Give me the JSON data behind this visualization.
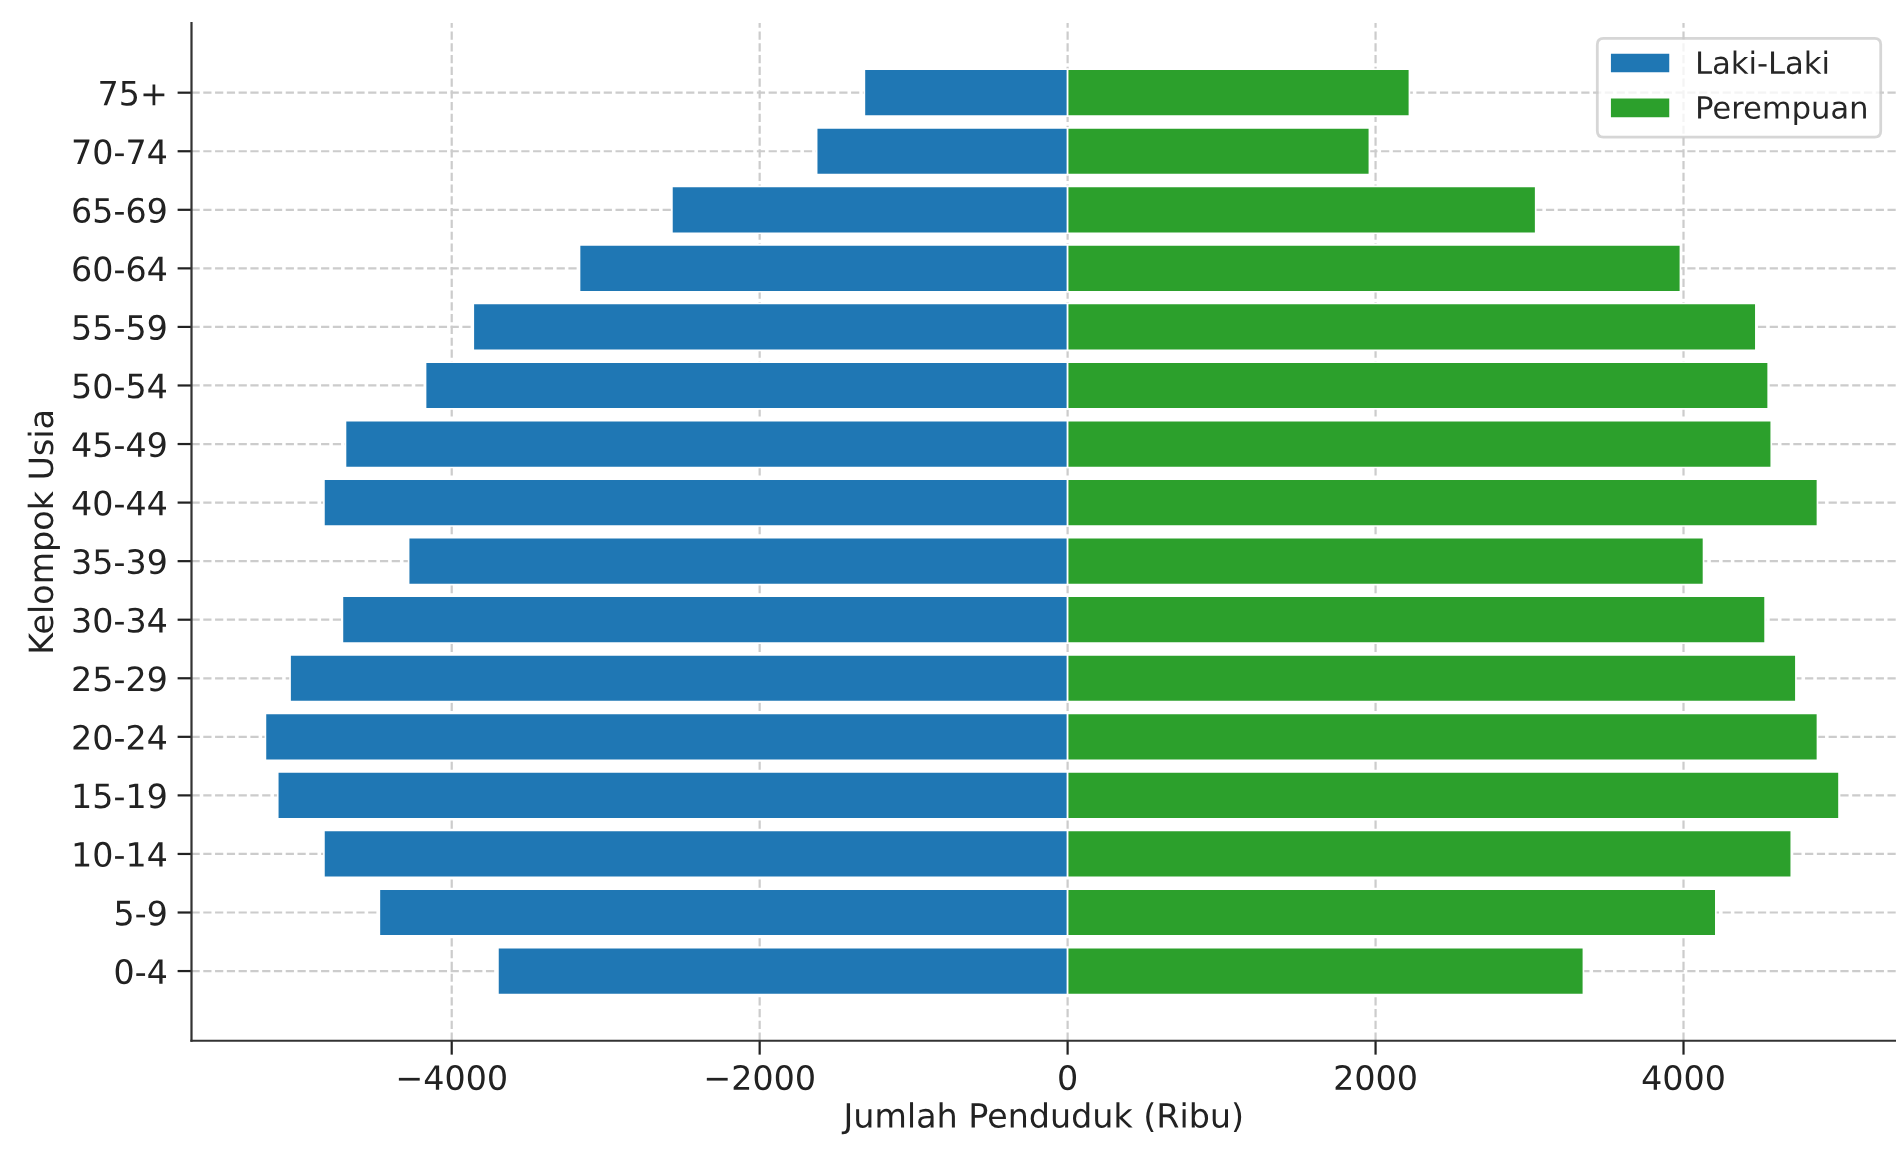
{
  "chart_data": {
    "type": "bar",
    "orientation": "horizontal",
    "xlabel": "Jumlah Penduduk (Ribu)",
    "ylabel": "Kelompok Usia",
    "categories": [
      "75+",
      "70-74",
      "65-69",
      "60-64",
      "55-59",
      "50-54",
      "45-49",
      "40-44",
      "35-39",
      "30-34",
      "25-29",
      "20-24",
      "15-19",
      "10-14",
      "5-9",
      "0-4"
    ],
    "series": [
      {
        "name": "Laki-Laki",
        "color": "#1f77b4",
        "values": [
          -1320,
          -1630,
          -2570,
          -3170,
          -3860,
          -4170,
          -4690,
          -4830,
          -4280,
          -4710,
          -5050,
          -5210,
          -5130,
          -4830,
          -4470,
          -3700
        ]
      },
      {
        "name": "Perempuan",
        "color": "#2ca02c",
        "values": [
          2220,
          1960,
          3040,
          3980,
          4470,
          4550,
          4570,
          4870,
          4130,
          4530,
          4730,
          4870,
          5010,
          4700,
          4210,
          3350
        ]
      }
    ],
    "xlim": [
      -5690,
      5380
    ],
    "xticks": [
      {
        "value": -4000,
        "label": "−4000"
      },
      {
        "value": -2000,
        "label": "−2000"
      },
      0,
      2000,
      4000
    ],
    "grid": true,
    "legend": "top right",
    "stacked": true
  }
}
